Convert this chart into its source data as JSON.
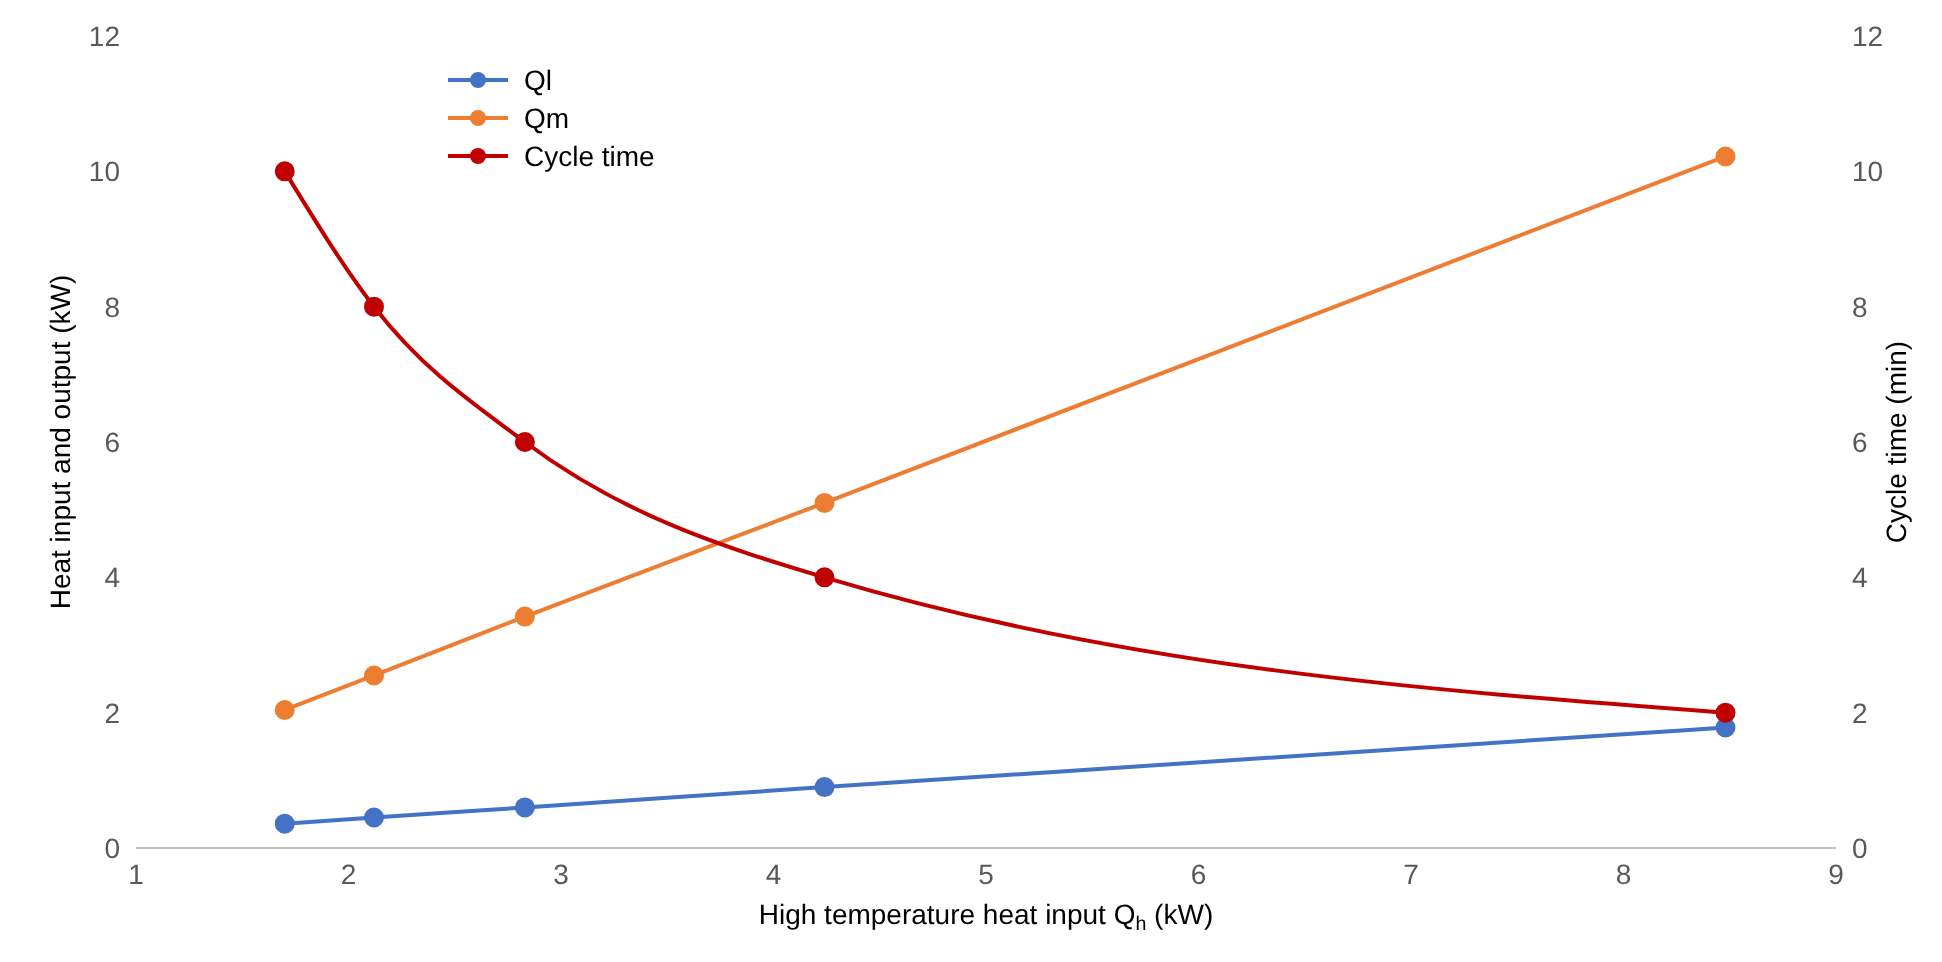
{
  "chart_data": {
    "type": "line",
    "xlabel": "High temperature heat input Q$_{h}$ (kW)",
    "ylabel": "Heat input and output (kW)",
    "y2label": "Cycle time (min)",
    "x": [
      1.7,
      2.12,
      2.83,
      4.24,
      8.48
    ],
    "series": [
      {
        "name": "Ql",
        "color": "#4472c4",
        "values": [
          0.36,
          0.45,
          0.6,
          0.9,
          1.78
        ]
      },
      {
        "name": "Qm",
        "color": "#ed7d31",
        "values": [
          2.04,
          2.55,
          3.42,
          5.1,
          10.22
        ]
      },
      {
        "name": "Cycle time",
        "color": "#c00000",
        "values": [
          10,
          8,
          6,
          4,
          2
        ],
        "axis": "y2"
      }
    ],
    "xlim": [
      1,
      9
    ],
    "xticks": [
      1,
      2,
      3,
      4,
      5,
      6,
      7,
      8,
      9
    ],
    "ylim": [
      0,
      12
    ],
    "yticks": [
      0,
      2,
      4,
      6,
      8,
      10,
      12
    ],
    "y2lim": [
      0,
      12
    ],
    "y2ticks": [
      0,
      2,
      4,
      6,
      8,
      10,
      12
    ],
    "grid": false,
    "legend": "top left",
    "marker": "circle",
    "line_style": "solid"
  }
}
